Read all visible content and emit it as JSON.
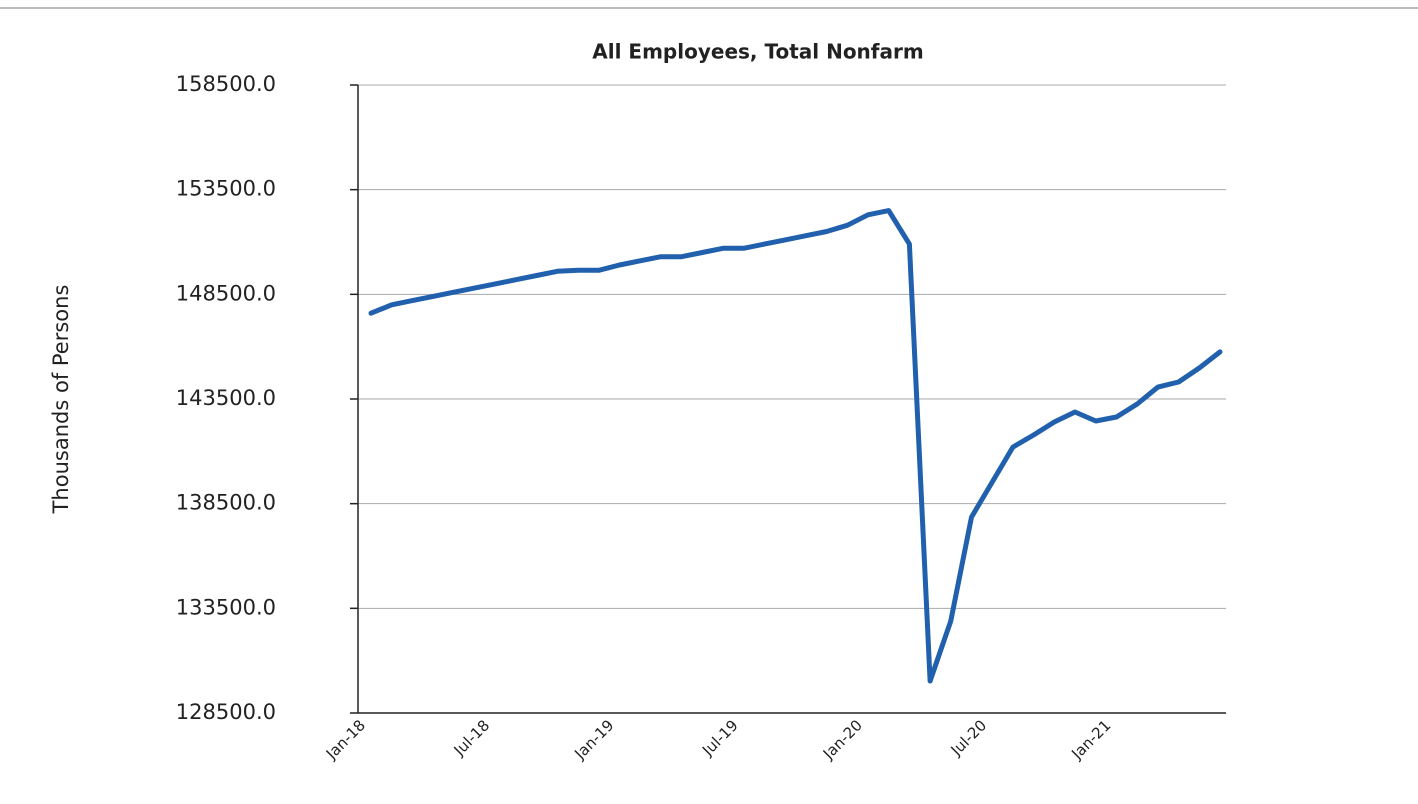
{
  "chart_data": {
    "type": "line",
    "title": "All Employees, Total Nonfarm",
    "ylabel": "Thousands of Persons",
    "categories": [
      "Jan-18",
      null,
      null,
      null,
      null,
      null,
      "Jul-18",
      null,
      null,
      null,
      null,
      null,
      "Jan-19",
      null,
      null,
      null,
      null,
      null,
      "Jul-19",
      null,
      null,
      null,
      null,
      null,
      "Jan-20",
      null,
      null,
      null,
      null,
      null,
      "Jul-20",
      null,
      null,
      null,
      null,
      null,
      "Jan-21",
      null,
      null,
      null,
      null,
      null
    ],
    "values": [
      147600,
      148000,
      148200,
      148400,
      148600,
      148800,
      149000,
      149200,
      149400,
      149600,
      149650,
      149650,
      149900,
      150100,
      150300,
      150300,
      150500,
      150700,
      150700,
      150900,
      151100,
      151300,
      151500,
      151800,
      152300,
      152500,
      150900,
      130030,
      132900,
      137860,
      139530,
      141200,
      141780,
      142400,
      142880,
      142450,
      142640,
      143260,
      144070,
      144310,
      144980,
      145750
    ],
    "color": "#2160ad",
    "ylim": [
      128500,
      158500
    ],
    "yticks": [
      {
        "value": 128500,
        "label": "128500.0"
      },
      {
        "value": 133500,
        "label": "133500.0"
      },
      {
        "value": 138500,
        "label": "138500.0"
      },
      {
        "value": 143500,
        "label": "143500.0"
      },
      {
        "value": 148500,
        "label": "148500.0"
      },
      {
        "value": 153500,
        "label": "153500.0"
      },
      {
        "value": 158500,
        "label": "158500.0"
      }
    ],
    "grid": true
  }
}
